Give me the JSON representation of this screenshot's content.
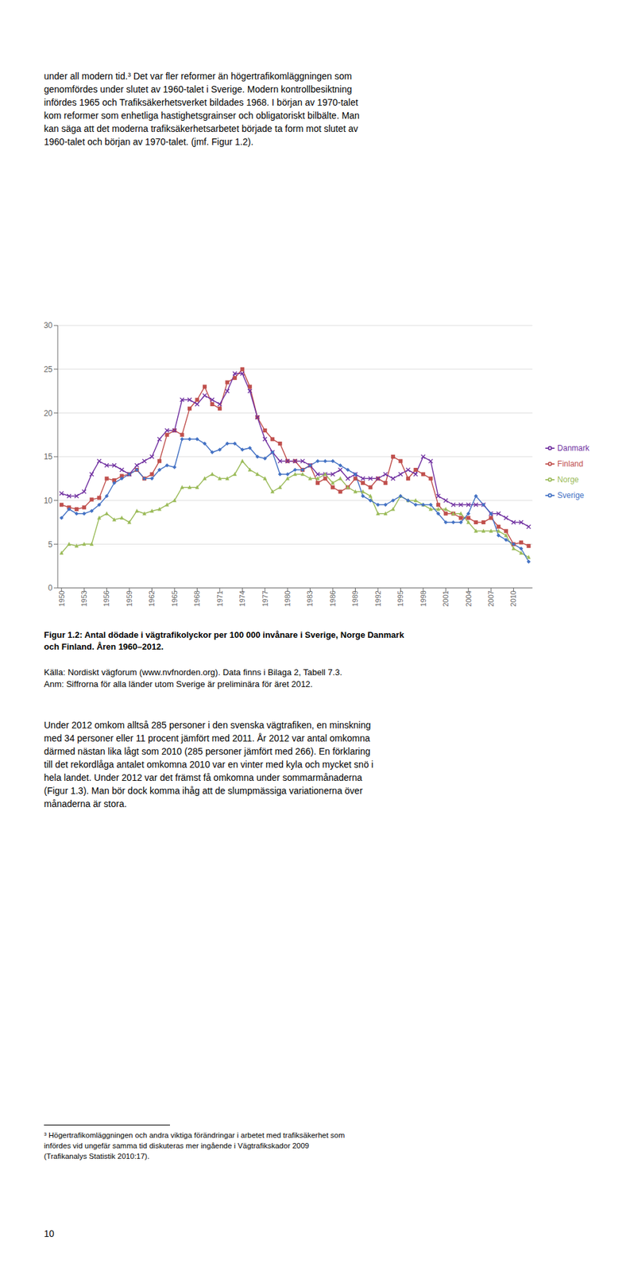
{
  "chart_data": {
    "type": "line",
    "x": [
      1950,
      1951,
      1952,
      1953,
      1954,
      1955,
      1956,
      1957,
      1958,
      1959,
      1960,
      1961,
      1962,
      1963,
      1964,
      1965,
      1966,
      1967,
      1968,
      1969,
      1970,
      1971,
      1972,
      1973,
      1974,
      1975,
      1976,
      1977,
      1978,
      1979,
      1980,
      1981,
      1982,
      1983,
      1984,
      1985,
      1986,
      1987,
      1988,
      1989,
      1990,
      1991,
      1992,
      1993,
      1994,
      1995,
      1996,
      1997,
      1998,
      1999,
      2000,
      2001,
      2002,
      2003,
      2004,
      2005,
      2006,
      2007,
      2008,
      2009,
      2010,
      2011,
      2012
    ],
    "series": [
      {
        "name": "Finland",
        "color": "#C0504D",
        "marker": "square",
        "values": [
          9.5,
          9.2,
          9.0,
          9.2,
          10.1,
          10.3,
          12.5,
          12.3,
          12.8,
          13.0,
          13.5,
          12.5,
          13.0,
          14.5,
          17.5,
          18.0,
          17.5,
          20.5,
          21.5,
          23.0,
          21.0,
          20.5,
          23.5,
          24.0,
          25.0,
          23.0,
          19.5,
          18.0,
          17.0,
          16.5,
          14.5,
          14.5,
          13.5,
          14.0,
          12.0,
          12.5,
          11.5,
          11.0,
          11.5,
          12.5,
          12.0,
          11.5,
          12.5,
          12.0,
          15.0,
          14.5,
          12.5,
          13.5,
          13.0,
          12.5,
          9.5,
          8.5,
          8.5,
          8.0,
          8.0,
          7.5,
          7.5,
          8.0,
          7.0,
          6.5,
          5.0,
          5.2,
          4.8
        ]
      },
      {
        "name": "Danmark",
        "color": "#7030A0",
        "marker": "x",
        "values": [
          10.8,
          10.5,
          10.5,
          11.0,
          13.0,
          14.5,
          14.0,
          14.0,
          13.5,
          13.0,
          14.0,
          14.5,
          15.0,
          17.0,
          18.0,
          18.0,
          21.5,
          21.5,
          21.0,
          22.0,
          21.5,
          21.0,
          22.5,
          24.5,
          24.5,
          22.5,
          19.5,
          17.0,
          15.5,
          14.5,
          14.5,
          14.5,
          14.5,
          14.0,
          13.0,
          13.0,
          13.0,
          13.5,
          12.5,
          13.0,
          12.5,
          12.5,
          12.5,
          13.0,
          12.5,
          13.0,
          13.5,
          13.0,
          15.0,
          14.5,
          10.5,
          10.0,
          9.5,
          9.5,
          9.5,
          9.5,
          9.5,
          8.5,
          8.5,
          8.0,
          7.5,
          7.5,
          7.0
        ]
      },
      {
        "name": "Norge",
        "color": "#9BBB59",
        "marker": "triangle",
        "values": [
          4.0,
          5.0,
          4.8,
          5.0,
          5.0,
          8.0,
          8.5,
          7.8,
          8.0,
          7.5,
          8.8,
          8.5,
          8.8,
          9.0,
          9.5,
          10.0,
          11.5,
          11.5,
          11.5,
          12.5,
          13.0,
          12.5,
          12.5,
          13.0,
          14.5,
          13.5,
          13.0,
          12.5,
          11.0,
          11.5,
          12.5,
          13.0,
          13.0,
          12.5,
          12.5,
          13.0,
          12.0,
          12.5,
          11.5,
          11.0,
          11.0,
          10.5,
          8.5,
          8.5,
          9.0,
          10.5,
          10.0,
          10.0,
          9.5,
          9.0,
          9.0,
          9.0,
          8.5,
          8.5,
          7.5,
          6.5,
          6.5,
          6.5,
          6.5,
          6.0,
          4.5,
          4.0,
          3.5
        ]
      },
      {
        "name": "Sverige",
        "color": "#4472C4",
        "marker": "diamond",
        "values": [
          8.0,
          9.0,
          8.5,
          8.5,
          8.8,
          9.5,
          10.5,
          12.0,
          12.5,
          13.0,
          13.5,
          12.5,
          12.5,
          13.5,
          14.0,
          13.8,
          17.0,
          17.0,
          17.0,
          16.5,
          15.5,
          15.8,
          16.5,
          16.5,
          15.8,
          16.0,
          15.0,
          14.8,
          15.5,
          13.0,
          13.0,
          13.5,
          13.5,
          14.0,
          14.5,
          14.5,
          14.5,
          14.0,
          13.5,
          13.0,
          10.5,
          10.0,
          9.5,
          9.5,
          10.0,
          10.5,
          10.0,
          9.5,
          9.5,
          9.5,
          8.5,
          7.5,
          7.5,
          7.5,
          8.5,
          10.5,
          9.5,
          8.5,
          6.0,
          5.5,
          5.0,
          4.5,
          3.0
        ]
      }
    ],
    "xlim": [
      1949.5,
      2012.5
    ],
    "xticks": [
      1950,
      1953,
      1956,
      1959,
      1962,
      1965,
      1968,
      1971,
      1974,
      1977,
      1980,
      1983,
      1986,
      1989,
      1992,
      1995,
      1998,
      2001,
      2004,
      2007,
      2010
    ],
    "ylim": [
      0,
      30
    ],
    "yticks": [
      0,
      5,
      10,
      15,
      20,
      25,
      30
    ],
    "grid": true,
    "legend": "right",
    "annotations": [
      "under all modern tid.³ Det var fler reformer än högertrafikomläggningen som\ngenomfördes under slutet av 1960-talet i Sverige. Modern kontrollbesiktning\ninfördes 1965 och Trafiksäkerhetsverket bildades 1968. I början av 1970-talet\nkom reformer som enhetliga hastighetsgrainser och obligatoriskt bilbälte. Man\nkan säga att det moderna trafiksäkerhetsarbetet började ta form mot slutet av\n1960-talet och början av 1970-talet. (jmf. Figur 1.2).",
      "Figur 1.2: Antal dödade i vägtrafikolyckor per 100 000 invånare i Sverige, Norge Danmark\noch Finland. Åren 1960–2012.",
      "Källa: Nordiskt vägforum (www.nvfnorden.org). Data finns i Bilaga 2, Tabell 7.3.\nAnm: Siffrorna för alla länder utom Sverige är preliminära för äret 2012.",
      "Under 2012 omkom alltså 285 personer i den svenska vägtrafiken, en minskning\nmed 34 personer eller 11 procent jämfört med 2011. År 2012 var antal omkomna\ndärmed nästan lika lågt som 2010 (285 personer jämfört med 266). En förklaring\ntill det rekordlåga antalet omkomna 2010 var en vinter med kyla och mycket snö i\nhela landet. Under 2012 var det främst få omkomna under sommarmånaderna\n(Figur 1.3). Man bör dock komma ihåg att de slumpmässiga variationerna över\nmånaderna är stora.",
      "³ Högertrafikomläggningen och andra viktiga förändringar i arbetet med trafiksäkerhet som\ninfördes vid ungefär samma tid diskuteras mer ingående i Vägtrafikskador 2009\n(Trafikanalys Statistik 2010:17).",
      "10"
    ]
  }
}
